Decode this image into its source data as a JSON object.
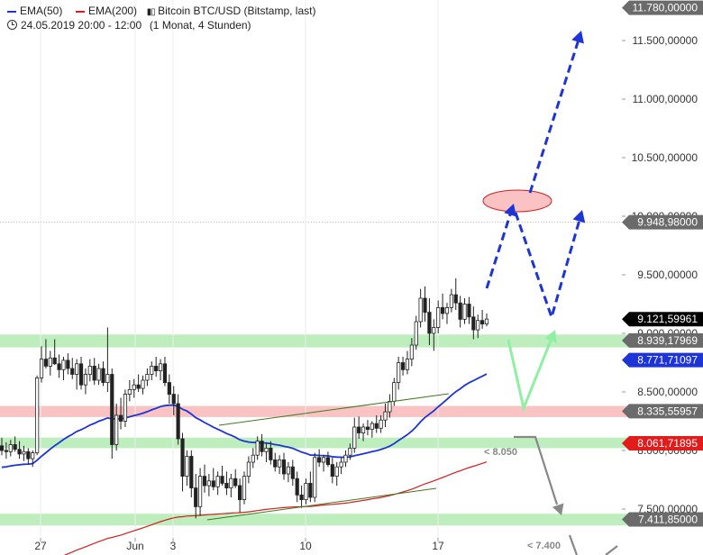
{
  "header": {
    "legend": [
      {
        "name": "EMA(50)",
        "color": "#1d34d6"
      },
      {
        "name": "EMA(200)",
        "color": "#d51f1f"
      }
    ],
    "instrument": "Bitcoin BTC/USD (Bitstamp, last)",
    "timeframe": "24.05.2019 20:00 - 12:00",
    "period": "(1 Monat, 4 Stunden)"
  },
  "chart_data": {
    "type": "candlestick",
    "x_ticks": [
      "27",
      "Jun",
      "3",
      "10",
      "17"
    ],
    "y_ticks": [
      "11.500,00000",
      "11.000,00000",
      "10.500,00000",
      "10.000,00000",
      "9.500,00000",
      "9.000,00000",
      "8.500,00000",
      "8.000,00000",
      "7.500,00000"
    ],
    "ylim": [
      7330,
      11860
    ],
    "price_tags": [
      {
        "label": "11.780,00000",
        "value": 11780,
        "style": "gray"
      },
      {
        "label": "9.948,98000",
        "value": 9948.98,
        "style": "gray"
      },
      {
        "label": "9.121,59961",
        "value": 9121.6,
        "style": "black"
      },
      {
        "label": "8.939,17969",
        "value": 8939.18,
        "style": "gray"
      },
      {
        "label": "8.771,71097",
        "value": 8771.71,
        "style": "blue"
      },
      {
        "label": "8.335,55957",
        "value": 8335.56,
        "style": "gray"
      },
      {
        "label": "8.061,71895",
        "value": 8061.72,
        "style": "red"
      },
      {
        "label": "7.411,85000",
        "value": 7411.85,
        "style": "gray"
      }
    ],
    "zones": [
      {
        "from": 8880,
        "to": 8990,
        "color": "#9be59b"
      },
      {
        "from": 8285,
        "to": 8380,
        "color": "#f7a3a3"
      },
      {
        "from": 8020,
        "to": 8110,
        "color": "#9be59b"
      },
      {
        "from": 7360,
        "to": 7460,
        "color": "#9be59b"
      }
    ],
    "annotations": [
      {
        "text": "< 8.050"
      },
      {
        "text": "< 7.400"
      }
    ],
    "candles": [
      {
        "o": 8040,
        "h": 8110,
        "l": 7960,
        "c": 8000
      },
      {
        "o": 8000,
        "h": 8070,
        "l": 7930,
        "c": 7990
      },
      {
        "o": 7990,
        "h": 8090,
        "l": 7950,
        "c": 8050
      },
      {
        "o": 8050,
        "h": 8120,
        "l": 7990,
        "c": 8010
      },
      {
        "o": 8010,
        "h": 8080,
        "l": 7930,
        "c": 7970
      },
      {
        "o": 7970,
        "h": 8040,
        "l": 7910,
        "c": 7990
      },
      {
        "o": 7990,
        "h": 8020,
        "l": 7880,
        "c": 7930
      },
      {
        "o": 7930,
        "h": 8000,
        "l": 7860,
        "c": 7980
      },
      {
        "o": 7980,
        "h": 8640,
        "l": 7960,
        "c": 8620
      },
      {
        "o": 8620,
        "h": 8890,
        "l": 8580,
        "c": 8780
      },
      {
        "o": 8780,
        "h": 8950,
        "l": 8700,
        "c": 8720
      },
      {
        "o": 8720,
        "h": 8850,
        "l": 8640,
        "c": 8790
      },
      {
        "o": 8790,
        "h": 8950,
        "l": 8730,
        "c": 8740
      },
      {
        "o": 8740,
        "h": 8820,
        "l": 8620,
        "c": 8690
      },
      {
        "o": 8690,
        "h": 8800,
        "l": 8600,
        "c": 8770
      },
      {
        "o": 8770,
        "h": 8830,
        "l": 8650,
        "c": 8700
      },
      {
        "o": 8700,
        "h": 8790,
        "l": 8610,
        "c": 8650
      },
      {
        "o": 8650,
        "h": 8780,
        "l": 8520,
        "c": 8740
      },
      {
        "o": 8740,
        "h": 8800,
        "l": 8520,
        "c": 8560
      },
      {
        "o": 8560,
        "h": 8700,
        "l": 8480,
        "c": 8650
      },
      {
        "o": 8650,
        "h": 8780,
        "l": 8590,
        "c": 8720
      },
      {
        "o": 8720,
        "h": 8790,
        "l": 8560,
        "c": 8600
      },
      {
        "o": 8600,
        "h": 8740,
        "l": 8560,
        "c": 8700
      },
      {
        "o": 8700,
        "h": 8760,
        "l": 8550,
        "c": 8580
      },
      {
        "o": 8580,
        "h": 9050,
        "l": 8500,
        "c": 8650
      },
      {
        "o": 8650,
        "h": 8700,
        "l": 7930,
        "c": 8050
      },
      {
        "o": 8050,
        "h": 8400,
        "l": 8000,
        "c": 8300
      },
      {
        "o": 8300,
        "h": 8450,
        "l": 8180,
        "c": 8250
      },
      {
        "o": 8250,
        "h": 8520,
        "l": 8200,
        "c": 8480
      },
      {
        "o": 8480,
        "h": 8600,
        "l": 8420,
        "c": 8520
      },
      {
        "o": 8520,
        "h": 8610,
        "l": 8450,
        "c": 8560
      },
      {
        "o": 8560,
        "h": 8650,
        "l": 8500,
        "c": 8530
      },
      {
        "o": 8530,
        "h": 8640,
        "l": 8480,
        "c": 8600
      },
      {
        "o": 8600,
        "h": 8700,
        "l": 8550,
        "c": 8650
      },
      {
        "o": 8650,
        "h": 8760,
        "l": 8600,
        "c": 8720
      },
      {
        "o": 8720,
        "h": 8800,
        "l": 8630,
        "c": 8680
      },
      {
        "o": 8680,
        "h": 8780,
        "l": 8600,
        "c": 8740
      },
      {
        "o": 8740,
        "h": 8800,
        "l": 8550,
        "c": 8580
      },
      {
        "o": 8580,
        "h": 8650,
        "l": 8400,
        "c": 8480
      },
      {
        "o": 8480,
        "h": 8550,
        "l": 8300,
        "c": 8400
      },
      {
        "o": 8400,
        "h": 8480,
        "l": 8050,
        "c": 8100
      },
      {
        "o": 8100,
        "h": 8150,
        "l": 7650,
        "c": 7780
      },
      {
        "o": 7780,
        "h": 8000,
        "l": 7700,
        "c": 7950
      },
      {
        "o": 7950,
        "h": 8000,
        "l": 7600,
        "c": 7680
      },
      {
        "o": 7680,
        "h": 7800,
        "l": 7420,
        "c": 7520
      },
      {
        "o": 7520,
        "h": 7850,
        "l": 7440,
        "c": 7780
      },
      {
        "o": 7780,
        "h": 7880,
        "l": 7640,
        "c": 7700
      },
      {
        "o": 7700,
        "h": 7800,
        "l": 7610,
        "c": 7740
      },
      {
        "o": 7740,
        "h": 7850,
        "l": 7660,
        "c": 7690
      },
      {
        "o": 7690,
        "h": 7820,
        "l": 7620,
        "c": 7780
      },
      {
        "o": 7780,
        "h": 7870,
        "l": 7700,
        "c": 7720
      },
      {
        "o": 7720,
        "h": 7820,
        "l": 7620,
        "c": 7680
      },
      {
        "o": 7680,
        "h": 7800,
        "l": 7600,
        "c": 7760
      },
      {
        "o": 7760,
        "h": 7840,
        "l": 7680,
        "c": 7700
      },
      {
        "o": 7700,
        "h": 7760,
        "l": 7470,
        "c": 7580
      },
      {
        "o": 7580,
        "h": 7820,
        "l": 7540,
        "c": 7780
      },
      {
        "o": 7780,
        "h": 7950,
        "l": 7720,
        "c": 7900
      },
      {
        "o": 7900,
        "h": 8020,
        "l": 7850,
        "c": 7960
      },
      {
        "o": 7960,
        "h": 8120,
        "l": 7920,
        "c": 8080
      },
      {
        "o": 8080,
        "h": 8140,
        "l": 7950,
        "c": 7990
      },
      {
        "o": 7990,
        "h": 8060,
        "l": 7900,
        "c": 8020
      },
      {
        "o": 8020,
        "h": 8080,
        "l": 7880,
        "c": 7920
      },
      {
        "o": 7920,
        "h": 7980,
        "l": 7820,
        "c": 7860
      },
      {
        "o": 7860,
        "h": 7960,
        "l": 7800,
        "c": 7920
      },
      {
        "o": 7920,
        "h": 7980,
        "l": 7750,
        "c": 7800
      },
      {
        "o": 7800,
        "h": 7900,
        "l": 7730,
        "c": 7860
      },
      {
        "o": 7860,
        "h": 7920,
        "l": 7700,
        "c": 7760
      },
      {
        "o": 7760,
        "h": 7820,
        "l": 7560,
        "c": 7620
      },
      {
        "o": 7620,
        "h": 7700,
        "l": 7510,
        "c": 7580
      },
      {
        "o": 7580,
        "h": 7760,
        "l": 7540,
        "c": 7720
      },
      {
        "o": 7720,
        "h": 7820,
        "l": 7560,
        "c": 7600
      },
      {
        "o": 7600,
        "h": 7980,
        "l": 7560,
        "c": 7940
      },
      {
        "o": 7940,
        "h": 8010,
        "l": 7860,
        "c": 7900
      },
      {
        "o": 7900,
        "h": 7960,
        "l": 7820,
        "c": 7940
      },
      {
        "o": 7940,
        "h": 7990,
        "l": 7860,
        "c": 7880
      },
      {
        "o": 7880,
        "h": 7940,
        "l": 7720,
        "c": 7780
      },
      {
        "o": 7780,
        "h": 7900,
        "l": 7700,
        "c": 7860
      },
      {
        "o": 7860,
        "h": 7940,
        "l": 7800,
        "c": 7900
      },
      {
        "o": 7900,
        "h": 8000,
        "l": 7860,
        "c": 7960
      },
      {
        "o": 7960,
        "h": 8060,
        "l": 7920,
        "c": 8020
      },
      {
        "o": 8020,
        "h": 8280,
        "l": 7980,
        "c": 8200
      },
      {
        "o": 8200,
        "h": 8290,
        "l": 8100,
        "c": 8150
      },
      {
        "o": 8150,
        "h": 8230,
        "l": 8080,
        "c": 8200
      },
      {
        "o": 8200,
        "h": 8260,
        "l": 8130,
        "c": 8180
      },
      {
        "o": 8180,
        "h": 8250,
        "l": 8110,
        "c": 8230
      },
      {
        "o": 8230,
        "h": 8300,
        "l": 8150,
        "c": 8190
      },
      {
        "o": 8190,
        "h": 8300,
        "l": 8150,
        "c": 8260
      },
      {
        "o": 8260,
        "h": 8400,
        "l": 8200,
        "c": 8330
      },
      {
        "o": 8330,
        "h": 8480,
        "l": 8280,
        "c": 8420
      },
      {
        "o": 8420,
        "h": 8620,
        "l": 8380,
        "c": 8580
      },
      {
        "o": 8580,
        "h": 8800,
        "l": 8520,
        "c": 8750
      },
      {
        "o": 8750,
        "h": 8800,
        "l": 8640,
        "c": 8690
      },
      {
        "o": 8690,
        "h": 8850,
        "l": 8650,
        "c": 8780
      },
      {
        "o": 8780,
        "h": 8960,
        "l": 8720,
        "c": 8900
      },
      {
        "o": 8900,
        "h": 9150,
        "l": 8860,
        "c": 9100
      },
      {
        "o": 9100,
        "h": 9380,
        "l": 9050,
        "c": 9300
      },
      {
        "o": 9300,
        "h": 9400,
        "l": 9100,
        "c": 9180
      },
      {
        "o": 9180,
        "h": 9300,
        "l": 8900,
        "c": 9000
      },
      {
        "o": 9000,
        "h": 9120,
        "l": 8850,
        "c": 9050
      },
      {
        "o": 9050,
        "h": 9280,
        "l": 9000,
        "c": 9220
      },
      {
        "o": 9220,
        "h": 9340,
        "l": 9120,
        "c": 9170
      },
      {
        "o": 9170,
        "h": 9260,
        "l": 9080,
        "c": 9220
      },
      {
        "o": 9220,
        "h": 9380,
        "l": 9180,
        "c": 9330
      },
      {
        "o": 9330,
        "h": 9470,
        "l": 9200,
        "c": 9260
      },
      {
        "o": 9260,
        "h": 9320,
        "l": 9050,
        "c": 9120
      },
      {
        "o": 9120,
        "h": 9300,
        "l": 9080,
        "c": 9250
      },
      {
        "o": 9250,
        "h": 9310,
        "l": 9080,
        "c": 9140
      },
      {
        "o": 9140,
        "h": 9230,
        "l": 8950,
        "c": 9030
      },
      {
        "o": 9030,
        "h": 9160,
        "l": 8960,
        "c": 9110
      },
      {
        "o": 9110,
        "h": 9200,
        "l": 9040,
        "c": 9080
      },
      {
        "o": 9080,
        "h": 9170,
        "l": 9060,
        "c": 9122
      }
    ]
  }
}
